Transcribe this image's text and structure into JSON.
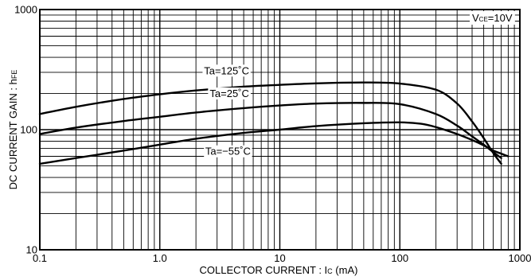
{
  "chart_data": {
    "type": "line",
    "xscale": "log",
    "yscale": "log",
    "xlim": [
      0.1,
      1000
    ],
    "ylim": [
      10,
      1000
    ],
    "grid": true,
    "xlabel_text": "COLLECTOR CURRENT : ",
    "xlabel_sym": "I",
    "xlabel_sub": "C",
    "xlabel_unit": " (mA)",
    "ylabel_text": "DC CURRENT GAIN : ",
    "ylabel_sym": "h",
    "ylabel_sub": "FE",
    "condition_prefix": "V",
    "condition_sub": "CE",
    "condition_value": "=10V",
    "x_ticks": [
      {
        "value": 0.1,
        "label": "0.1"
      },
      {
        "value": 1,
        "label": "1.0"
      },
      {
        "value": 10,
        "label": "10"
      },
      {
        "value": 100,
        "label": "100"
      },
      {
        "value": 1000,
        "label": "1000"
      }
    ],
    "y_ticks": [
      {
        "value": 10,
        "label": "10"
      },
      {
        "value": 100,
        "label": "100"
      },
      {
        "value": 1000,
        "label": "1000"
      }
    ],
    "series": [
      {
        "name": "Ta=125˚C",
        "label_at": [
          3.6,
          310
        ],
        "x": [
          0.1,
          0.2,
          0.5,
          1,
          2,
          5,
          10,
          20,
          50,
          100,
          200,
          300,
          400,
          500,
          600,
          700
        ],
        "y": [
          135,
          155,
          180,
          197,
          212,
          228,
          236,
          243,
          247,
          242,
          215,
          165,
          117,
          85,
          64,
          52
        ]
      },
      {
        "name": "Ta=25˚C",
        "label_at": [
          3.8,
          200
        ],
        "x": [
          0.1,
          0.2,
          0.5,
          1,
          2,
          5,
          10,
          20,
          50,
          100,
          200,
          300,
          400,
          500,
          600,
          700
        ],
        "y": [
          92,
          104,
          118,
          128,
          139,
          151,
          159,
          165,
          167,
          163,
          135,
          108,
          88,
          75,
          65,
          58
        ]
      },
      {
        "name": "Ta=−55˚C",
        "label_at": [
          3.7,
          66
        ],
        "x": [
          0.1,
          0.2,
          0.5,
          1,
          2,
          5,
          10,
          20,
          50,
          100,
          150,
          200,
          300,
          400,
          500,
          600,
          800
        ],
        "y": [
          52,
          58,
          67,
          75,
          84,
          94,
          100,
          107,
          113,
          115,
          112,
          105,
          92,
          82,
          74,
          67,
          60
        ]
      }
    ]
  }
}
